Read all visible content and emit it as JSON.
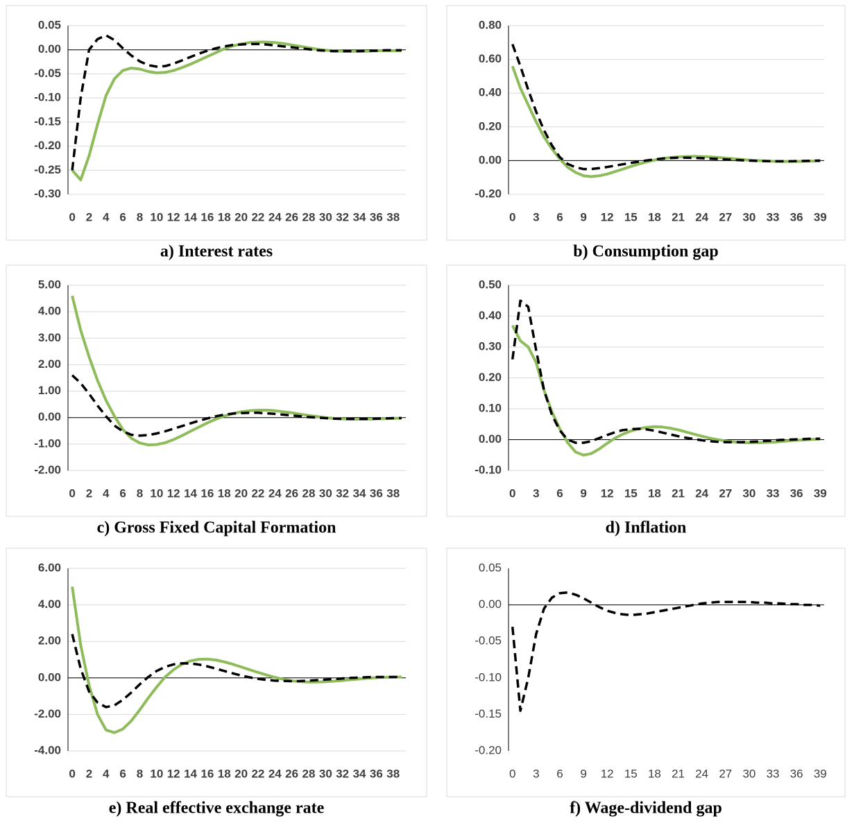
{
  "chart_data": [
    {
      "type": "line",
      "title": "a) Interest rates",
      "categories": [
        0,
        null,
        2,
        null,
        4,
        null,
        6,
        null,
        8,
        null,
        10,
        null,
        12,
        null,
        14,
        null,
        16,
        null,
        18,
        null,
        20,
        null,
        22,
        null,
        24,
        null,
        26,
        null,
        28,
        null,
        30,
        null,
        32,
        null,
        34,
        null,
        36,
        null,
        38,
        null
      ],
      "ylim": [
        -0.3,
        0.05
      ],
      "yticks": [
        {
          "value": -0.3,
          "label": "-0.30"
        },
        -0.25,
        {
          "value": -0.2,
          "label": "-0.20"
        },
        -0.15,
        {
          "value": -0.1,
          "label": "-0.10"
        },
        -0.05,
        {
          "value": 0,
          "label": "0.00"
        },
        0.05
      ],
      "grid": true,
      "series": [
        {
          "color": "#8fbc5a",
          "dash": false,
          "values": [
            -0.25,
            -0.27,
            -0.22,
            -0.155,
            -0.095,
            -0.06,
            -0.043,
            -0.038,
            -0.04,
            -0.045,
            -0.048,
            -0.047,
            -0.043,
            -0.037,
            -0.03,
            -0.022,
            -0.014,
            -0.006,
            0.002,
            0.008,
            0.012,
            0.015,
            0.016,
            0.016,
            0.015,
            0.013,
            0.01,
            0.007,
            0.004,
            0.001,
            -0.001,
            -0.002,
            -0.003,
            -0.003,
            -0.003,
            -0.003,
            -0.002,
            -0.002,
            -0.002,
            -0.002
          ]
        },
        {
          "color": "#000000",
          "dash": true,
          "values": [
            -0.25,
            -0.1,
            0.0,
            0.022,
            0.03,
            0.02,
            0.003,
            -0.012,
            -0.024,
            -0.032,
            -0.035,
            -0.034,
            -0.029,
            -0.022,
            -0.015,
            -0.008,
            -0.002,
            0.003,
            0.007,
            0.01,
            0.011,
            0.012,
            0.012,
            0.011,
            0.009,
            0.007,
            0.005,
            0.003,
            0.001,
            -0.001,
            -0.002,
            -0.003,
            -0.003,
            -0.003,
            -0.003,
            -0.002,
            -0.002,
            -0.001,
            -0.001,
            -0.001
          ]
        }
      ]
    },
    {
      "type": "line",
      "title": "b) Consumption gap",
      "categories": [
        0,
        null,
        null,
        3,
        null,
        null,
        6,
        null,
        null,
        9,
        null,
        null,
        12,
        null,
        null,
        15,
        null,
        null,
        18,
        null,
        null,
        21,
        null,
        null,
        24,
        null,
        null,
        27,
        null,
        null,
        30,
        null,
        null,
        33,
        null,
        null,
        36,
        null,
        null,
        39
      ],
      "ylim": [
        -0.2,
        0.8
      ],
      "yticks": [
        {
          "value": -0.2,
          "label": "-0.20"
        },
        {
          "value": 0,
          "label": "0.00"
        },
        {
          "value": 0.2,
          "label": "0.20"
        },
        {
          "value": 0.4,
          "label": "0.40"
        },
        {
          "value": 0.6,
          "label": "0.60"
        },
        {
          "value": 0.8,
          "label": "0.80"
        }
      ],
      "grid": true,
      "series": [
        {
          "color": "#8fbc5a",
          "dash": false,
          "values": [
            0.56,
            0.43,
            0.33,
            0.23,
            0.14,
            0.07,
            0.01,
            -0.04,
            -0.07,
            -0.09,
            -0.095,
            -0.09,
            -0.08,
            -0.065,
            -0.05,
            -0.035,
            -0.02,
            -0.008,
            0.003,
            0.012,
            0.018,
            0.022,
            0.024,
            0.025,
            0.024,
            0.022,
            0.019,
            0.015,
            0.011,
            0.007,
            0.003,
            0,
            -0.002,
            -0.004,
            -0.005,
            -0.005,
            -0.005,
            -0.004,
            -0.003,
            -0.002
          ]
        },
        {
          "color": "#000000",
          "dash": true,
          "values": [
            0.69,
            0.56,
            0.42,
            0.29,
            0.18,
            0.09,
            0.02,
            -0.02,
            -0.04,
            -0.05,
            -0.05,
            -0.045,
            -0.038,
            -0.03,
            -0.022,
            -0.014,
            -0.006,
            0.001,
            0.007,
            0.012,
            0.015,
            0.017,
            0.017,
            0.016,
            0.014,
            0.012,
            0.01,
            0.007,
            0.004,
            0.002,
            0,
            -0.002,
            -0.003,
            -0.004,
            -0.004,
            -0.004,
            -0.003,
            -0.002,
            -0.001,
            0
          ]
        }
      ]
    },
    {
      "type": "line",
      "title": "c) Gross Fixed Capital Formation",
      "categories": [
        0,
        null,
        2,
        null,
        4,
        null,
        6,
        null,
        8,
        null,
        10,
        null,
        12,
        null,
        14,
        null,
        16,
        null,
        18,
        null,
        20,
        null,
        22,
        null,
        24,
        null,
        26,
        null,
        28,
        null,
        30,
        null,
        32,
        null,
        34,
        null,
        36,
        null,
        38,
        null
      ],
      "ylim": [
        -2,
        5
      ],
      "yticks": [
        {
          "value": -2,
          "label": "-2.00"
        },
        {
          "value": -1,
          "label": "-1.00"
        },
        {
          "value": 0,
          "label": "0.00"
        },
        {
          "value": 1,
          "label": "1.00"
        },
        {
          "value": 2,
          "label": "2.00"
        },
        {
          "value": 3,
          "label": "3.00"
        },
        {
          "value": 4,
          "label": "4.00"
        },
        {
          "value": 5,
          "label": "5.00"
        }
      ],
      "grid": true,
      "series": [
        {
          "color": "#8fbc5a",
          "dash": false,
          "values": [
            4.6,
            3.3,
            2.3,
            1.4,
            0.65,
            0.05,
            -0.45,
            -0.78,
            -0.96,
            -1.03,
            -1.02,
            -0.95,
            -0.83,
            -0.68,
            -0.52,
            -0.36,
            -0.2,
            -0.06,
            0.06,
            0.15,
            0.22,
            0.26,
            0.28,
            0.28,
            0.26,
            0.22,
            0.18,
            0.13,
            0.08,
            0.04,
            0,
            -0.03,
            -0.05,
            -0.06,
            -0.06,
            -0.06,
            -0.05,
            -0.04,
            -0.03,
            -0.02
          ]
        },
        {
          "color": "#000000",
          "dash": true,
          "values": [
            1.6,
            1.3,
            0.9,
            0.45,
            0.05,
            -0.3,
            -0.52,
            -0.65,
            -0.68,
            -0.66,
            -0.6,
            -0.52,
            -0.42,
            -0.32,
            -0.22,
            -0.12,
            -0.03,
            0.05,
            0.11,
            0.15,
            0.17,
            0.18,
            0.18,
            0.16,
            0.14,
            0.11,
            0.08,
            0.05,
            0.02,
            0,
            -0.02,
            -0.04,
            -0.05,
            -0.05,
            -0.05,
            -0.05,
            -0.04,
            -0.03,
            -0.02,
            -0.02
          ]
        }
      ]
    },
    {
      "type": "line",
      "title": "d) Inflation",
      "categories": [
        0,
        null,
        null,
        3,
        null,
        null,
        6,
        null,
        null,
        9,
        null,
        null,
        12,
        null,
        null,
        15,
        null,
        null,
        18,
        null,
        null,
        21,
        null,
        null,
        24,
        null,
        null,
        27,
        null,
        null,
        30,
        null,
        null,
        33,
        null,
        null,
        36,
        null,
        null,
        39
      ],
      "ylim": [
        -0.1,
        0.5
      ],
      "yticks": [
        {
          "value": -0.1,
          "label": "-0.10"
        },
        {
          "value": 0,
          "label": "0.00"
        },
        {
          "value": 0.1,
          "label": "0.10"
        },
        {
          "value": 0.2,
          "label": "0.20"
        },
        {
          "value": 0.3,
          "label": "0.30"
        },
        {
          "value": 0.4,
          "label": "0.40"
        },
        {
          "value": 0.5,
          "label": "0.50"
        }
      ],
      "grid": true,
      "series": [
        {
          "color": "#8fbc5a",
          "dash": false,
          "values": [
            0.37,
            0.32,
            0.3,
            0.25,
            0.16,
            0.09,
            0.035,
            -0.01,
            -0.04,
            -0.05,
            -0.045,
            -0.03,
            -0.012,
            0.005,
            0.018,
            0.028,
            0.035,
            0.04,
            0.042,
            0.041,
            0.037,
            0.032,
            0.025,
            0.018,
            0.011,
            0.005,
            0,
            -0.004,
            -0.007,
            -0.009,
            -0.01,
            -0.01,
            -0.009,
            -0.008,
            -0.006,
            -0.004,
            -0.002,
            -0.001,
            0.001,
            0.002
          ]
        },
        {
          "color": "#000000",
          "dash": true,
          "values": [
            0.26,
            0.45,
            0.43,
            0.29,
            0.16,
            0.08,
            0.03,
            0,
            -0.01,
            -0.01,
            -0.005,
            0.005,
            0.015,
            0.024,
            0.031,
            0.034,
            0.035,
            0.033,
            0.029,
            0.023,
            0.017,
            0.011,
            0.006,
            0.002,
            -0.002,
            -0.005,
            -0.007,
            -0.008,
            -0.008,
            -0.008,
            -0.007,
            -0.006,
            -0.004,
            -0.003,
            -0.001,
            0,
            0.001,
            0.002,
            0.003,
            0.003
          ]
        }
      ]
    },
    {
      "type": "line",
      "title": "e) Real effective exchange rate",
      "categories": [
        0,
        null,
        2,
        null,
        4,
        null,
        6,
        null,
        8,
        null,
        10,
        null,
        12,
        null,
        14,
        null,
        16,
        null,
        18,
        null,
        20,
        null,
        22,
        null,
        24,
        null,
        26,
        null,
        28,
        null,
        30,
        null,
        32,
        null,
        34,
        null,
        36,
        null,
        38,
        null
      ],
      "ylim": [
        -4,
        6
      ],
      "yticks": [
        {
          "value": -4,
          "label": "-4.00"
        },
        {
          "value": -2,
          "label": "-2.00"
        },
        {
          "value": 0,
          "label": "0.00"
        },
        {
          "value": 2,
          "label": "2.00"
        },
        {
          "value": 4,
          "label": "4.00"
        },
        {
          "value": 6,
          "label": "6.00"
        }
      ],
      "grid": true,
      "series": [
        {
          "color": "#8fbc5a",
          "dash": false,
          "values": [
            5.0,
            1.8,
            -0.4,
            -2.0,
            -2.85,
            -3.0,
            -2.8,
            -2.35,
            -1.75,
            -1.1,
            -0.5,
            0.05,
            0.45,
            0.75,
            0.93,
            1.02,
            1.03,
            0.98,
            0.88,
            0.75,
            0.6,
            0.45,
            0.3,
            0.16,
            0.03,
            -0.08,
            -0.16,
            -0.21,
            -0.23,
            -0.23,
            -0.21,
            -0.18,
            -0.14,
            -0.1,
            -0.06,
            -0.02,
            0.01,
            0.03,
            0.04,
            0.05
          ]
        },
        {
          "color": "#000000",
          "dash": true,
          "values": [
            2.4,
            0.5,
            -0.75,
            -1.35,
            -1.6,
            -1.5,
            -1.2,
            -0.8,
            -0.35,
            0.05,
            0.38,
            0.6,
            0.74,
            0.8,
            0.79,
            0.73,
            0.63,
            0.51,
            0.38,
            0.25,
            0.13,
            0.03,
            -0.05,
            -0.11,
            -0.15,
            -0.17,
            -0.18,
            -0.17,
            -0.15,
            -0.12,
            -0.09,
            -0.06,
            -0.03,
            0,
            0.02,
            0.04,
            0.05,
            0.05,
            0.05,
            0.05
          ]
        }
      ]
    },
    {
      "type": "line",
      "title": "f) Wage-dividend gap",
      "categories": [
        0,
        null,
        null,
        3,
        null,
        null,
        6,
        null,
        null,
        9,
        null,
        null,
        12,
        null,
        null,
        15,
        null,
        null,
        18,
        null,
        null,
        21,
        null,
        null,
        24,
        null,
        null,
        27,
        null,
        null,
        30,
        null,
        null,
        33,
        null,
        null,
        36,
        null,
        null,
        39
      ],
      "ylim": [
        -0.2,
        0.05
      ],
      "yticks": [
        {
          "value": -0.2,
          "label": "-0.20"
        },
        -0.15,
        {
          "value": -0.1,
          "label": "-0.10"
        },
        -0.05,
        {
          "value": 0,
          "label": "0.00"
        },
        0.05
      ],
      "grid": false,
      "series": [
        {
          "color": "#000000",
          "dash": true,
          "values": [
            -0.03,
            -0.145,
            -0.1,
            -0.04,
            -0.005,
            0.01,
            0.016,
            0.017,
            0.014,
            0.009,
            0.003,
            -0.003,
            -0.008,
            -0.011,
            -0.013,
            -0.014,
            -0.013,
            -0.012,
            -0.01,
            -0.008,
            -0.006,
            -0.004,
            -0.002,
            0,
            0.002,
            0.003,
            0.004,
            0.004,
            0.004,
            0.004,
            0.004,
            0.003,
            0.003,
            0.002,
            0.002,
            0.001,
            0.001,
            0,
            0,
            -0.001
          ]
        }
      ]
    }
  ]
}
